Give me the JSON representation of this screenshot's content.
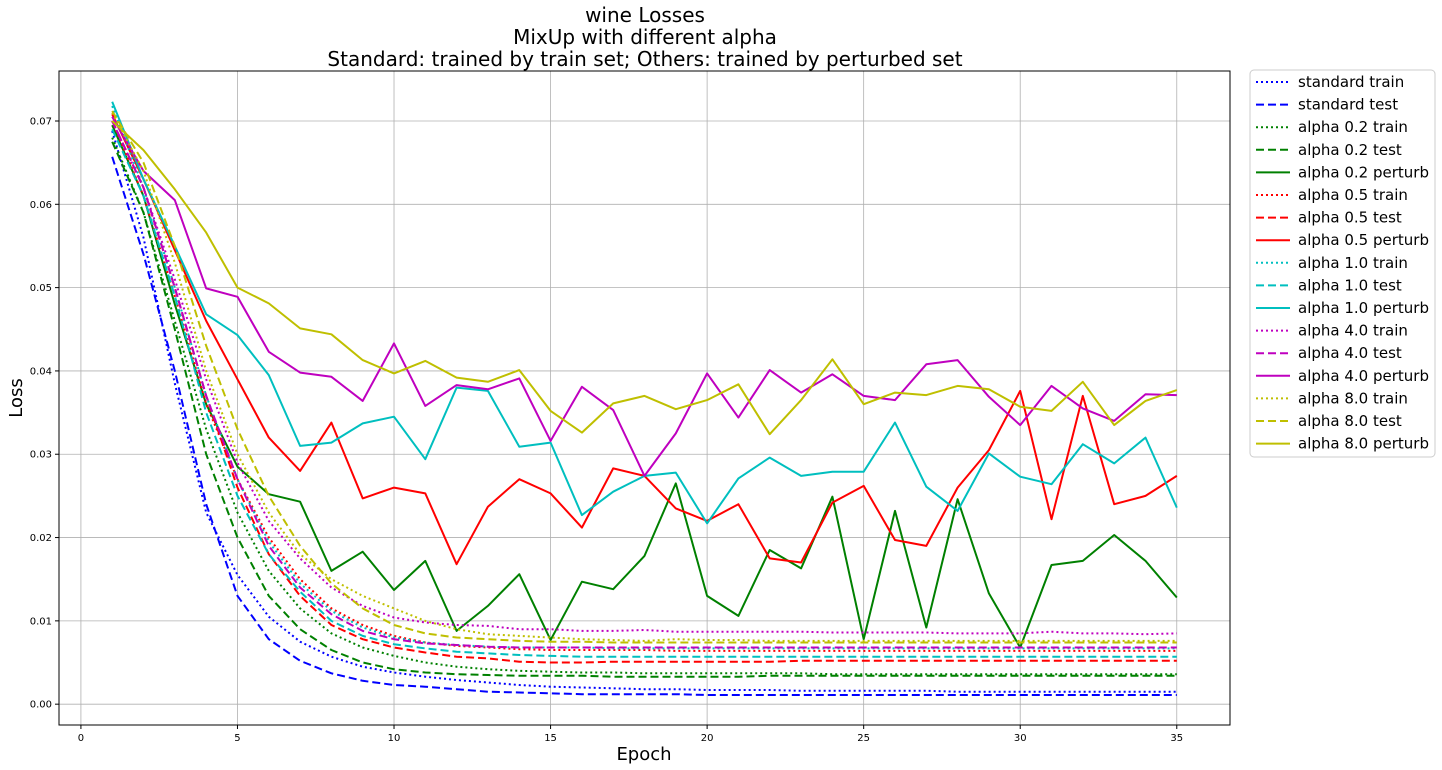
{
  "chart_data": {
    "type": "line",
    "title": [
      "wine Losses",
      "MixUp with different alpha",
      "Standard: trained by train set; Others: trained by perturbed set"
    ],
    "xlabel": "Epoch",
    "ylabel": "Loss",
    "xlim": [
      -0.7,
      36.7
    ],
    "ylim": [
      -0.0025,
      0.076
    ],
    "xticks": [
      0,
      5,
      10,
      15,
      20,
      25,
      30,
      35
    ],
    "yticks": [
      0.0,
      0.01,
      0.02,
      0.03,
      0.04,
      0.05,
      0.06,
      0.07
    ],
    "xtick_labels": [
      "0",
      "5",
      "10",
      "15",
      "20",
      "25",
      "30",
      "35"
    ],
    "ytick_labels": [
      "0.00",
      "0.01",
      "0.02",
      "0.03",
      "0.04",
      "0.05",
      "0.06",
      "0.07"
    ],
    "grid": true,
    "legend_position": "outside upper-right",
    "x": [
      1,
      2,
      3,
      4,
      5,
      6,
      7,
      8,
      9,
      10,
      11,
      12,
      13,
      14,
      15,
      16,
      17,
      18,
      19,
      20,
      21,
      22,
      23,
      24,
      25,
      26,
      27,
      28,
      29,
      30,
      31,
      32,
      33,
      34,
      35
    ],
    "series": [
      {
        "name": "standard train",
        "color": "#0000ff",
        "style": "dotted",
        "values": [
          0.0688,
          0.056,
          0.0385,
          0.023,
          0.0155,
          0.0105,
          0.0075,
          0.0057,
          0.0045,
          0.0038,
          0.0033,
          0.0029,
          0.0026,
          0.0023,
          0.0021,
          0.002,
          0.0019,
          0.0018,
          0.0018,
          0.0017,
          0.0017,
          0.0017,
          0.0016,
          0.0016,
          0.0016,
          0.0016,
          0.0016,
          0.0015,
          0.0015,
          0.0015,
          0.0015,
          0.0015,
          0.0015,
          0.0015,
          0.0015
        ]
      },
      {
        "name": "standard test",
        "color": "#0000ff",
        "style": "dashed",
        "values": [
          0.0657,
          0.054,
          0.04,
          0.024,
          0.013,
          0.0078,
          0.0052,
          0.0037,
          0.0028,
          0.0023,
          0.0021,
          0.0018,
          0.0015,
          0.0014,
          0.0013,
          0.0012,
          0.0012,
          0.0012,
          0.0012,
          0.0011,
          0.0011,
          0.0011,
          0.0011,
          0.0011,
          0.0011,
          0.0011,
          0.0011,
          0.0011,
          0.0011,
          0.0011,
          0.0011,
          0.0011,
          0.0011,
          0.0011,
          0.0011
        ]
      },
      {
        "name": "alpha 0.2 train",
        "color": "#008000",
        "style": "dotted",
        "values": [
          0.068,
          0.059,
          0.046,
          0.033,
          0.023,
          0.016,
          0.0115,
          0.0085,
          0.0068,
          0.0058,
          0.005,
          0.0045,
          0.0042,
          0.004,
          0.0039,
          0.0038,
          0.0038,
          0.0037,
          0.0037,
          0.0037,
          0.0037,
          0.0037,
          0.0037,
          0.0036,
          0.0036,
          0.0036,
          0.0036,
          0.0036,
          0.0036,
          0.0036,
          0.0036,
          0.0036,
          0.0036,
          0.0036,
          0.0036
        ]
      },
      {
        "name": "alpha 0.2 test",
        "color": "#008000",
        "style": "dashed",
        "values": [
          0.0675,
          0.059,
          0.045,
          0.03,
          0.02,
          0.013,
          0.009,
          0.0065,
          0.005,
          0.0042,
          0.0038,
          0.0036,
          0.0035,
          0.0034,
          0.0034,
          0.0034,
          0.0033,
          0.0033,
          0.0033,
          0.0033,
          0.0033,
          0.0034,
          0.0034,
          0.0034,
          0.0034,
          0.0034,
          0.0034,
          0.0034,
          0.0034,
          0.0034,
          0.0034,
          0.0034,
          0.0034,
          0.0034,
          0.0034
        ]
      },
      {
        "name": "alpha 0.2 perturb",
        "color": "#008000",
        "style": "solid",
        "values": [
          0.0695,
          0.061,
          0.048,
          0.036,
          0.0285,
          0.0252,
          0.0243,
          0.016,
          0.0183,
          0.0137,
          0.0172,
          0.0088,
          0.0118,
          0.0156,
          0.0077,
          0.0147,
          0.0138,
          0.0178,
          0.0265,
          0.013,
          0.0106,
          0.0185,
          0.0163,
          0.0249,
          0.0078,
          0.0232,
          0.0092,
          0.0246,
          0.0133,
          0.0068,
          0.0167,
          0.0172,
          0.0203,
          0.0172,
          0.0128
        ]
      },
      {
        "name": "alpha 0.5 train",
        "color": "#ff0000",
        "style": "dotted",
        "values": [
          0.07,
          0.061,
          0.049,
          0.036,
          0.027,
          0.02,
          0.015,
          0.0115,
          0.0095,
          0.0082,
          0.0074,
          0.007,
          0.0068,
          0.0066,
          0.0065,
          0.0065,
          0.0065,
          0.0065,
          0.0064,
          0.0064,
          0.0064,
          0.0064,
          0.0064,
          0.0064,
          0.0064,
          0.0064,
          0.0064,
          0.0064,
          0.0064,
          0.0064,
          0.0064,
          0.0064,
          0.0064,
          0.0064,
          0.0064
        ]
      },
      {
        "name": "alpha 0.5 test",
        "color": "#ff0000",
        "style": "dashed",
        "values": [
          0.07,
          0.062,
          0.05,
          0.037,
          0.026,
          0.018,
          0.013,
          0.0095,
          0.0078,
          0.0068,
          0.0062,
          0.0057,
          0.0055,
          0.0051,
          0.005,
          0.005,
          0.0051,
          0.0051,
          0.0051,
          0.0051,
          0.0051,
          0.0051,
          0.0052,
          0.0052,
          0.0052,
          0.0052,
          0.0052,
          0.0052,
          0.0052,
          0.0052,
          0.0052,
          0.0052,
          0.0052,
          0.0052,
          0.0052
        ]
      },
      {
        "name": "alpha 0.5 perturb",
        "color": "#ff0000",
        "style": "solid",
        "values": [
          0.0708,
          0.063,
          0.0545,
          0.046,
          0.039,
          0.032,
          0.028,
          0.0338,
          0.0247,
          0.026,
          0.0253,
          0.0168,
          0.0237,
          0.027,
          0.0253,
          0.0212,
          0.0283,
          0.0274,
          0.0235,
          0.022,
          0.024,
          0.0175,
          0.017,
          0.0242,
          0.0262,
          0.0197,
          0.019,
          0.026,
          0.0305,
          0.0376,
          0.0222,
          0.037,
          0.024,
          0.025,
          0.0274
        ]
      },
      {
        "name": "alpha 1.0 train",
        "color": "#00bfbf",
        "style": "dotted",
        "values": [
          0.0718,
          0.062,
          0.05,
          0.037,
          0.027,
          0.0195,
          0.0145,
          0.0112,
          0.0092,
          0.008,
          0.0074,
          0.0071,
          0.0069,
          0.0068,
          0.0068,
          0.0068,
          0.0067,
          0.0067,
          0.0067,
          0.0067,
          0.0067,
          0.0067,
          0.0067,
          0.0067,
          0.0067,
          0.0067,
          0.0067,
          0.0067,
          0.0067,
          0.0067,
          0.0067,
          0.0067,
          0.0067,
          0.0067,
          0.0067
        ]
      },
      {
        "name": "alpha 1.0 test",
        "color": "#00bfbf",
        "style": "dashed",
        "values": [
          0.069,
          0.061,
          0.049,
          0.035,
          0.025,
          0.018,
          0.0135,
          0.01,
          0.0082,
          0.0072,
          0.0067,
          0.0063,
          0.0061,
          0.0059,
          0.0058,
          0.0057,
          0.0057,
          0.0057,
          0.0057,
          0.0057,
          0.0057,
          0.0057,
          0.0057,
          0.0057,
          0.0057,
          0.0057,
          0.0057,
          0.0057,
          0.0057,
          0.0057,
          0.0057,
          0.0057,
          0.0057,
          0.0057,
          0.0057
        ]
      },
      {
        "name": "alpha 1.0 perturb",
        "color": "#00bfbf",
        "style": "solid",
        "values": [
          0.0723,
          0.063,
          0.055,
          0.0468,
          0.0443,
          0.0395,
          0.031,
          0.0314,
          0.0337,
          0.0345,
          0.0294,
          0.038,
          0.0376,
          0.0309,
          0.0314,
          0.0227,
          0.0255,
          0.0274,
          0.0278,
          0.0217,
          0.0271,
          0.0296,
          0.0274,
          0.0279,
          0.0279,
          0.0338,
          0.0261,
          0.0232,
          0.0301,
          0.0273,
          0.0264,
          0.0312,
          0.0289,
          0.032,
          0.0236
        ]
      },
      {
        "name": "alpha 4.0 train",
        "color": "#bf00bf",
        "style": "dotted",
        "values": [
          0.07,
          0.062,
          0.051,
          0.039,
          0.029,
          0.022,
          0.0175,
          0.014,
          0.0118,
          0.0104,
          0.0098,
          0.0095,
          0.0094,
          0.009,
          0.009,
          0.0088,
          0.0088,
          0.0089,
          0.0087,
          0.0087,
          0.0087,
          0.0087,
          0.0087,
          0.0086,
          0.0086,
          0.0086,
          0.0086,
          0.0085,
          0.0085,
          0.0085,
          0.0087,
          0.0085,
          0.0085,
          0.0084,
          0.0085
        ]
      },
      {
        "name": "alpha 4.0 test",
        "color": "#bf00bf",
        "style": "dashed",
        "values": [
          0.07,
          0.062,
          0.05,
          0.037,
          0.027,
          0.019,
          0.014,
          0.0108,
          0.0088,
          0.0078,
          0.0073,
          0.0071,
          0.0069,
          0.0068,
          0.0068,
          0.0068,
          0.0068,
          0.0068,
          0.0068,
          0.0068,
          0.0068,
          0.0068,
          0.0068,
          0.0068,
          0.0068,
          0.0068,
          0.0068,
          0.0068,
          0.0068,
          0.0068,
          0.0068,
          0.0068,
          0.0068,
          0.0068,
          0.0068
        ]
      },
      {
        "name": "alpha 4.0 perturb",
        "color": "#bf00bf",
        "style": "solid",
        "values": [
          0.0705,
          0.064,
          0.0605,
          0.0499,
          0.0489,
          0.0423,
          0.0398,
          0.0393,
          0.0364,
          0.0433,
          0.0358,
          0.0383,
          0.0378,
          0.0391,
          0.0316,
          0.0381,
          0.0353,
          0.0274,
          0.0325,
          0.0397,
          0.0344,
          0.0401,
          0.0374,
          0.0396,
          0.037,
          0.0365,
          0.0408,
          0.0413,
          0.0369,
          0.0335,
          0.0382,
          0.0355,
          0.034,
          0.0372,
          0.0371
        ]
      },
      {
        "name": "alpha 8.0 train",
        "color": "#bfbf00",
        "style": "dotted",
        "values": [
          0.071,
          0.064,
          0.053,
          0.04,
          0.03,
          0.023,
          0.018,
          0.015,
          0.013,
          0.0115,
          0.01,
          0.009,
          0.0084,
          0.0082,
          0.008,
          0.0078,
          0.0077,
          0.0076,
          0.0078,
          0.0077,
          0.0077,
          0.0076,
          0.0076,
          0.0076,
          0.0076,
          0.0076,
          0.0076,
          0.0076,
          0.0076,
          0.0076,
          0.0076,
          0.0076,
          0.0076,
          0.0076,
          0.0076
        ]
      },
      {
        "name": "alpha 8.0 test",
        "color": "#bfbf00",
        "style": "dashed",
        "values": [
          0.0712,
          0.065,
          0.055,
          0.043,
          0.033,
          0.025,
          0.019,
          0.0145,
          0.0115,
          0.0095,
          0.0085,
          0.008,
          0.0078,
          0.0076,
          0.0075,
          0.0075,
          0.0074,
          0.0074,
          0.0074,
          0.0074,
          0.0074,
          0.0074,
          0.0074,
          0.0074,
          0.0074,
          0.0074,
          0.0074,
          0.0074,
          0.0074,
          0.0074,
          0.0074,
          0.0074,
          0.0074,
          0.0074,
          0.0074
        ]
      },
      {
        "name": "alpha 8.0 perturb",
        "color": "#bfbf00",
        "style": "solid",
        "values": [
          0.07,
          0.0665,
          0.0618,
          0.0566,
          0.05,
          0.0481,
          0.0451,
          0.0444,
          0.0413,
          0.0397,
          0.0412,
          0.0392,
          0.0387,
          0.0401,
          0.0352,
          0.0326,
          0.0361,
          0.037,
          0.0354,
          0.0365,
          0.0384,
          0.0324,
          0.0365,
          0.0414,
          0.036,
          0.0374,
          0.0371,
          0.0382,
          0.0378,
          0.0357,
          0.0352,
          0.0387,
          0.0335,
          0.0364,
          0.0377
        ]
      }
    ]
  }
}
